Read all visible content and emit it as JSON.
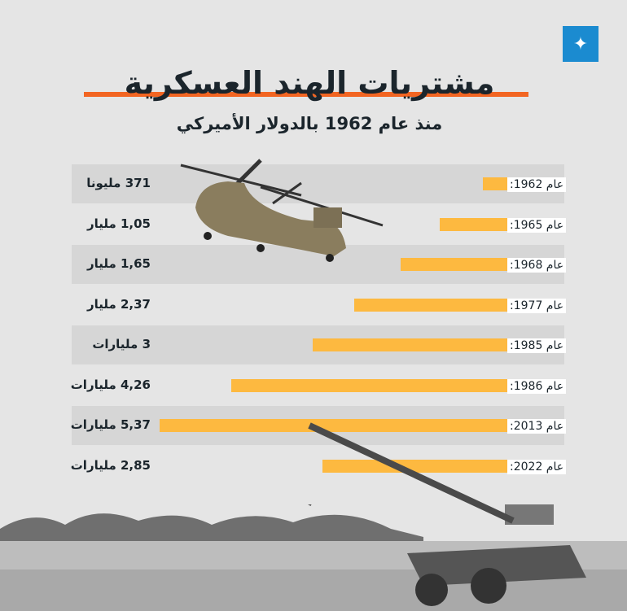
{
  "logo": "الجزيرة",
  "title": "مشتريات الهند العسكرية",
  "subtitle": "منذ عام 1962 بالدولار الأميركي",
  "chart_data": {
    "type": "bar",
    "orientation": "horizontal",
    "title": "مشتريات الهند العسكرية",
    "subtitle": "منذ عام 1962 بالدولار الأميركي",
    "unit": "billion USD",
    "categories": [
      "عام 1962:",
      "عام 1965:",
      "عام 1968:",
      "عام 1977:",
      "عام 1985:",
      "عام 1986:",
      "عام 2013:",
      "عام 2022:"
    ],
    "values": [
      0.371,
      1.05,
      1.65,
      2.37,
      3,
      4.26,
      5.37,
      2.85
    ],
    "value_labels": [
      "371 مليونا",
      "1,05 مليار",
      "1,65 مليار",
      "2,37 مليار",
      "3 مليارات",
      "4,26 مليارات",
      "5,37 مليارات",
      "2,85 مليارات"
    ],
    "bar_color": "#fdb940"
  }
}
